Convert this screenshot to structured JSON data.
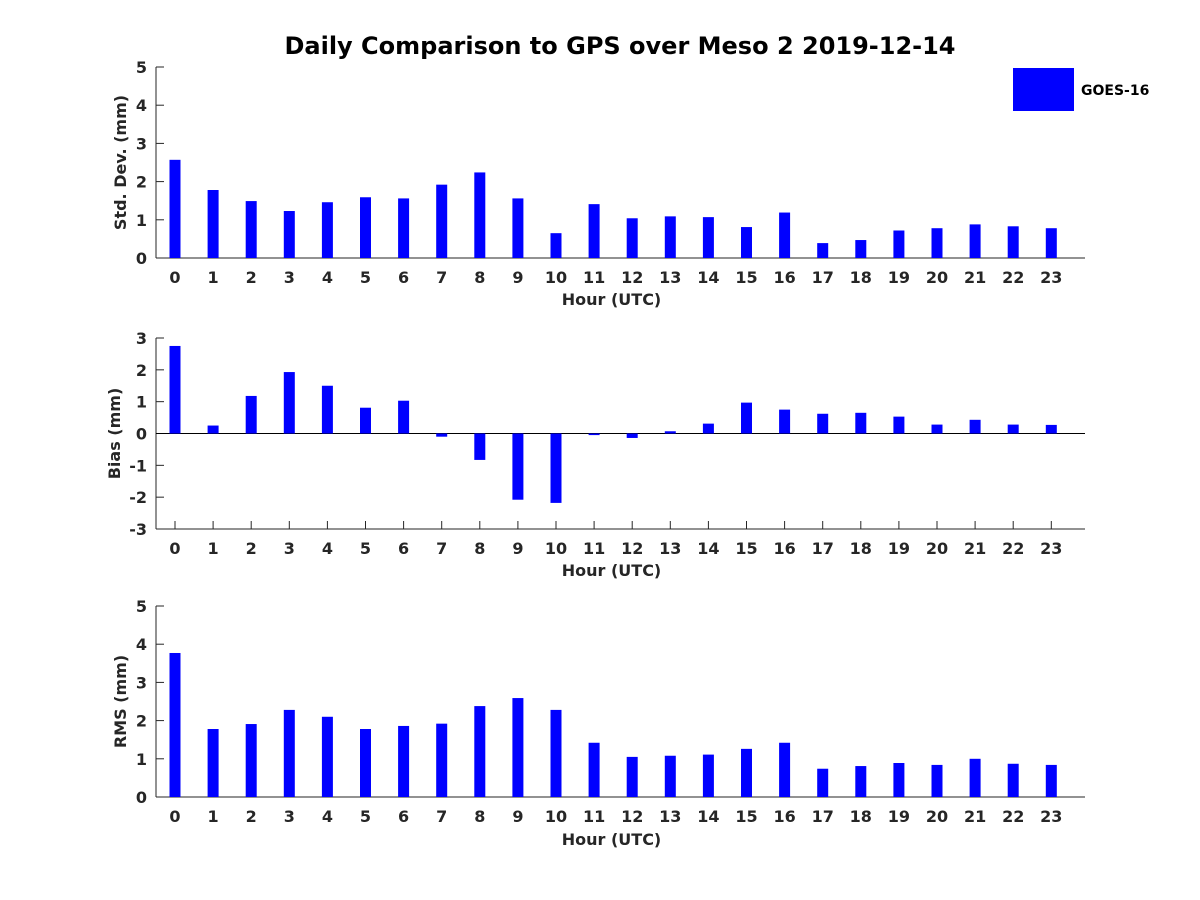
{
  "figure_title": "Daily Comparison to GPS over Meso 2 2019-12-14",
  "legend": {
    "label": "GOES-16",
    "color": "#0000ff"
  },
  "chart_data": [
    {
      "type": "bar",
      "title": "Daily Comparison to GPS over Meso 2 2019-12-14",
      "xlabel": "Hour (UTC)",
      "ylabel": "Std. Dev. (mm)",
      "ylim": [
        0,
        5
      ],
      "yticks": [
        0,
        1,
        2,
        3,
        4,
        5
      ],
      "categories": [
        "0",
        "1",
        "2",
        "3",
        "4",
        "5",
        "6",
        "7",
        "8",
        "9",
        "10",
        "11",
        "12",
        "13",
        "14",
        "15",
        "16",
        "17",
        "18",
        "19",
        "20",
        "21",
        "22",
        "23"
      ],
      "series": [
        {
          "name": "GOES-16",
          "color": "#0000ff",
          "values": [
            2.57,
            1.78,
            1.49,
            1.23,
            1.46,
            1.59,
            1.56,
            1.92,
            2.24,
            1.56,
            0.65,
            1.41,
            1.04,
            1.09,
            1.07,
            0.81,
            1.19,
            0.39,
            0.47,
            0.72,
            0.78,
            0.88,
            0.83,
            0.78
          ]
        }
      ]
    },
    {
      "type": "bar",
      "xlabel": "Hour (UTC)",
      "ylabel": "Bias (mm)",
      "ylim": [
        -3,
        3
      ],
      "yticks": [
        -3,
        -2,
        -1,
        0,
        1,
        2,
        3
      ],
      "categories": [
        "0",
        "1",
        "2",
        "3",
        "4",
        "5",
        "6",
        "7",
        "8",
        "9",
        "10",
        "11",
        "12",
        "13",
        "14",
        "15",
        "16",
        "17",
        "18",
        "19",
        "20",
        "21",
        "22",
        "23"
      ],
      "series": [
        {
          "name": "GOES-16",
          "color": "#0000ff",
          "values": [
            2.75,
            0.25,
            1.18,
            1.93,
            1.5,
            0.81,
            1.03,
            -0.1,
            -0.83,
            -2.08,
            -2.18,
            -0.05,
            -0.14,
            0.07,
            0.31,
            0.97,
            0.75,
            0.62,
            0.65,
            0.53,
            0.28,
            0.43,
            0.28,
            0.27
          ]
        }
      ]
    },
    {
      "type": "bar",
      "xlabel": "Hour (UTC)",
      "ylabel": "RMS (mm)",
      "ylim": [
        0,
        5
      ],
      "yticks": [
        0,
        1,
        2,
        3,
        4,
        5
      ],
      "categories": [
        "0",
        "1",
        "2",
        "3",
        "4",
        "5",
        "6",
        "7",
        "8",
        "9",
        "10",
        "11",
        "12",
        "13",
        "14",
        "15",
        "16",
        "17",
        "18",
        "19",
        "20",
        "21",
        "22",
        "23"
      ],
      "series": [
        {
          "name": "GOES-16",
          "color": "#0000ff",
          "values": [
            3.77,
            1.78,
            1.91,
            2.28,
            2.1,
            1.78,
            1.86,
            1.92,
            2.38,
            2.59,
            2.28,
            1.42,
            1.05,
            1.08,
            1.11,
            1.26,
            1.42,
            0.74,
            0.81,
            0.89,
            0.84,
            1.0,
            0.87,
            0.84
          ]
        }
      ]
    }
  ]
}
